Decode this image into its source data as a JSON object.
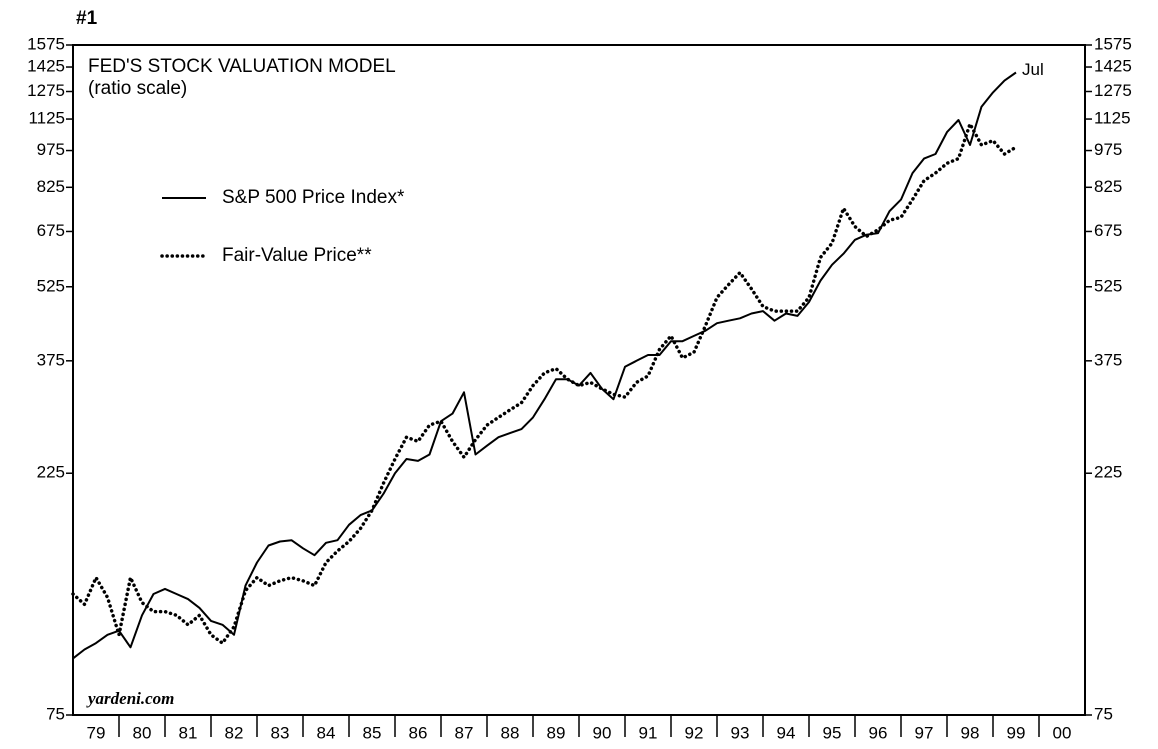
{
  "chart_data": {
    "type": "line",
    "label": "#1",
    "title": "FED'S STOCK VALUATION MODEL",
    "subtitle": "(ratio scale)",
    "annotation": "Jul",
    "source": "yardeni.com",
    "log_scale": true,
    "categories": [
      "79",
      "80",
      "81",
      "82",
      "83",
      "84",
      "85",
      "86",
      "87",
      "88",
      "89",
      "90",
      "91",
      "92",
      "93",
      "94",
      "95",
      "96",
      "97",
      "98",
      "99",
      "00"
    ],
    "x": [
      1979,
      1979.25,
      1979.5,
      1979.75,
      1980,
      1980.25,
      1980.5,
      1980.75,
      1981,
      1981.25,
      1981.5,
      1981.75,
      1982,
      1982.25,
      1982.5,
      1982.75,
      1983,
      1983.25,
      1983.5,
      1983.75,
      1984,
      1984.25,
      1984.5,
      1984.75,
      1985,
      1985.25,
      1985.5,
      1985.75,
      1986,
      1986.25,
      1986.5,
      1986.75,
      1987,
      1987.25,
      1987.5,
      1987.75,
      1988,
      1988.25,
      1988.5,
      1988.75,
      1989,
      1989.25,
      1989.5,
      1989.75,
      1990,
      1990.25,
      1990.5,
      1990.75,
      1991,
      1991.25,
      1991.5,
      1991.75,
      1992,
      1992.25,
      1992.5,
      1992.75,
      1993,
      1993.25,
      1993.5,
      1993.75,
      1994,
      1994.25,
      1994.5,
      1994.75,
      1995,
      1995.25,
      1995.5,
      1995.75,
      1996,
      1996.25,
      1996.5,
      1996.75,
      1997,
      1997.25,
      1997.5,
      1997.75,
      1998,
      1998.25,
      1998.5,
      1998.75,
      1999,
      1999.25,
      1999.5
    ],
    "xlim": [
      1979,
      2001
    ],
    "xticks": [
      1980,
      1981,
      1982,
      1983,
      1984,
      1985,
      1986,
      1987,
      1988,
      1989,
      1990,
      1991,
      1992,
      1993,
      1994,
      1995,
      1996,
      1997,
      1998,
      1999,
      2000
    ],
    "ylim": [
      75,
      1575
    ],
    "yticks": [
      75,
      225,
      375,
      525,
      675,
      825,
      975,
      1125,
      1275,
      1425,
      1575
    ],
    "y2lim": [
      75,
      1575
    ],
    "y2ticks": [
      75,
      225,
      375,
      525,
      675,
      825,
      975,
      1125,
      1275,
      1425,
      1575
    ],
    "series": [
      {
        "name": "S&P 500 Price Index*",
        "color": "#000000",
        "style": "solid",
        "values": [
          97,
          101,
          104,
          108,
          110,
          102,
          118,
          130,
          133,
          130,
          127,
          122,
          115,
          113,
          108,
          135,
          150,
          162,
          165,
          166,
          160,
          155,
          164,
          166,
          178,
          186,
          190,
          205,
          225,
          240,
          238,
          245,
          285,
          295,
          325,
          245,
          255,
          265,
          270,
          275,
          290,
          315,
          345,
          345,
          335,
          355,
          330,
          315,
          365,
          375,
          385,
          385,
          410,
          410,
          420,
          430,
          445,
          450,
          455,
          465,
          470,
          450,
          465,
          460,
          490,
          540,
          580,
          610,
          650,
          665,
          670,
          740,
          780,
          880,
          940,
          960,
          1060,
          1120,
          1000,
          1190,
          1270,
          1340,
          1390
        ]
      },
      {
        "name": "Fair-Value Price**",
        "color": "#000000",
        "style": "dotted",
        "values": [
          130,
          124,
          140,
          128,
          108,
          140,
          125,
          120,
          120,
          118,
          113,
          118,
          108,
          104,
          112,
          132,
          140,
          135,
          138,
          140,
          138,
          135,
          150,
          158,
          165,
          175,
          190,
          215,
          240,
          265,
          260,
          280,
          285,
          260,
          242,
          262,
          280,
          290,
          300,
          310,
          335,
          355,
          362,
          345,
          335,
          340,
          330,
          322,
          318,
          340,
          350,
          395,
          420,
          380,
          390,
          440,
          500,
          530,
          560,
          520,
          480,
          470,
          470,
          470,
          500,
          600,
          640,
          750,
          690,
          660,
          680,
          710,
          720,
          780,
          850,
          880,
          920,
          940,
          1100,
          1000,
          1020,
          960,
          990
        ]
      }
    ]
  }
}
